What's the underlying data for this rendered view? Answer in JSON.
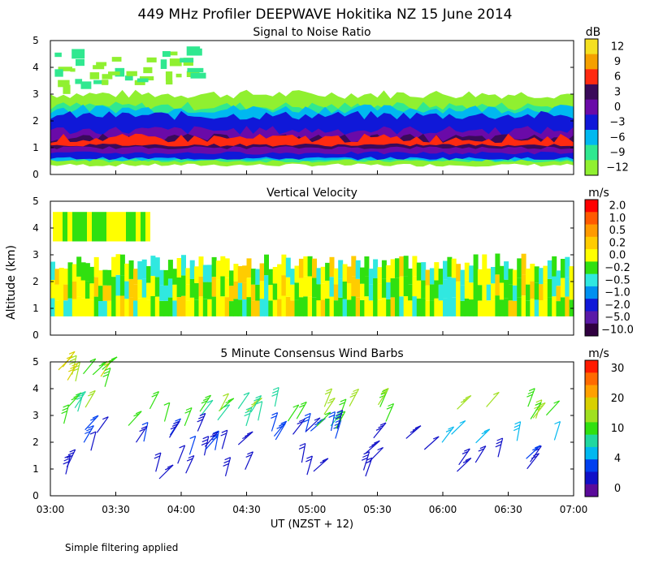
{
  "title": "449 MHz Profiler DEEPWAVE Hokitika NZ 15 June 2014",
  "footer_note": "Simple filtering applied",
  "shared_ylabel": "Altitude (km)",
  "chart_data": [
    {
      "type": "heatmap",
      "title": "Signal to Noise Ratio",
      "unit": "dB",
      "x_range": [
        "03:00",
        "07:00"
      ],
      "ylim": [
        0,
        5
      ],
      "yticks": [
        "0",
        "1",
        "2",
        "3",
        "4",
        "5"
      ],
      "colorbar": {
        "labels": [
          "12",
          "9",
          "6",
          "3",
          "0",
          "−3",
          "−6",
          "−9",
          "−12"
        ],
        "colors": [
          "#f5e020",
          "#f5a000",
          "#ff2a10",
          "#3a0a5a",
          "#6a0aa8",
          "#1018d8",
          "#00b8f0",
          "#30e890",
          "#90f030"
        ]
      },
      "bands": [
        {
          "level": "-12",
          "bottom_km": 0.35,
          "top_km": 3.0
        },
        {
          "level": "-9",
          "bottom_km": 0.5,
          "top_km": 2.55
        },
        {
          "level": "-6",
          "bottom_km": 0.55,
          "top_km": 2.45
        },
        {
          "level": "-3",
          "bottom_km": 0.6,
          "top_km": 2.2
        },
        {
          "level": "0",
          "bottom_km": 0.8,
          "top_km": 1.65
        },
        {
          "level": "3",
          "bottom_km": 1.0,
          "top_km": 1.35
        },
        {
          "level": "6",
          "bottom_km": 1.1,
          "top_km": 1.35
        }
      ]
    },
    {
      "type": "heatmap",
      "title": "Vertical Velocity",
      "unit": "m/s",
      "x_range": [
        "03:00",
        "07:00"
      ],
      "ylim": [
        0,
        5
      ],
      "yticks": [
        "0",
        "1",
        "2",
        "3",
        "4",
        "5"
      ],
      "colorbar": {
        "labels": [
          "2.0",
          "1.0",
          "0.5",
          "0.2",
          "0.0",
          "−0.2",
          "−0.5",
          "−1.0",
          "−2.0",
          "−5.0",
          "−10.0"
        ],
        "colors": [
          "#ff0000",
          "#ff5a00",
          "#ff9a00",
          "#ffcc00",
          "#ffff00",
          "#30e010",
          "#30e8e0",
          "#0090f0",
          "#1018d8",
          "#5a1aa8",
          "#300040"
        ]
      },
      "dominant_values": [
        "0.0",
        "−0.2",
        "−0.5"
      ],
      "data_extent_km": [
        0.7,
        3.0
      ]
    },
    {
      "type": "wind-barbs",
      "title": "5 Minute Consensus Wind Barbs",
      "unit": "m/s",
      "x_range": [
        "03:00",
        "07:00"
      ],
      "ylim": [
        0,
        5
      ],
      "yticks": [
        "0",
        "1",
        "2",
        "3",
        "4",
        "5"
      ],
      "colorbar": {
        "labels": [
          "30",
          "20",
          "10",
          "4",
          "0"
        ],
        "colors": [
          "#ff1a00",
          "#ff6a00",
          "#ffa000",
          "#d8d000",
          "#a0e020",
          "#30e010",
          "#20d8a0",
          "#00b8f0",
          "#0040f0",
          "#1010c8",
          "#5a0a9a"
        ]
      },
      "x_ticks": [
        "03:00",
        "03:30",
        "04:00",
        "04:30",
        "05:00",
        "05:30",
        "06:00",
        "06:30",
        "07:00"
      ],
      "xlabel": "UT  (NZST + 12)"
    }
  ]
}
